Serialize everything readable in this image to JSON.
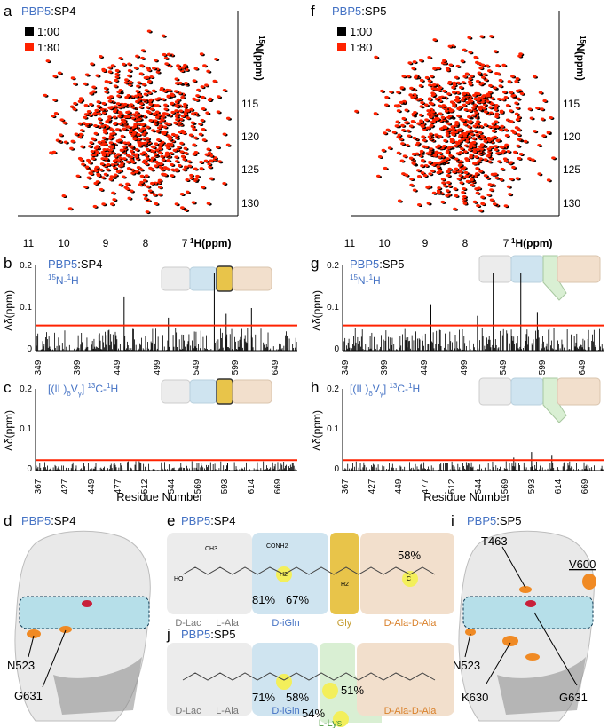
{
  "panels": {
    "a": {
      "letter": "a",
      "prot": "PBP5",
      "lig": ":SP4",
      "legend": [
        {
          "label": "1:00",
          "color": "#000000"
        },
        {
          "label": "1:80",
          "color": "#ff2200"
        }
      ],
      "y_axis_label_sup": "15",
      "y_axis_label": "N(ppm)",
      "x_axis_label_sup": "1",
      "x_axis_label": "H(ppm)",
      "x_ticks": [
        "11",
        "10",
        "9",
        "8",
        "7"
      ],
      "y_ticks": [
        "115",
        "120",
        "125",
        "130"
      ]
    },
    "f": {
      "letter": "f",
      "prot": "PBP5",
      "lig": ":SP5",
      "legend": [
        {
          "label": "1:00",
          "color": "#000000"
        },
        {
          "label": "1:80",
          "color": "#ff2200"
        }
      ],
      "y_axis_label_sup": "15",
      "y_axis_label": "N(ppm)",
      "x_axis_label_sup": "1",
      "x_axis_label": "H(ppm)",
      "x_ticks": [
        "11",
        "10",
        "9",
        "8",
        "7"
      ],
      "y_ticks": [
        "115",
        "120",
        "125",
        "130"
      ]
    },
    "b": {
      "letter": "b",
      "prot": "PBP5",
      "lig": ":SP4",
      "sub_a": "15",
      "sub_b": "N-",
      "sub_c": "1",
      "sub_d": "H",
      "y_label": "Δδ(ppm)",
      "y_ticks": [
        "0.2",
        "0.1",
        "0"
      ],
      "x_ticks": [
        "349",
        "399",
        "449",
        "499",
        "549",
        "599",
        "649"
      ]
    },
    "g": {
      "letter": "g",
      "prot": "PBP5",
      "lig": ":SP5",
      "sub_a": "15",
      "sub_b": "N-",
      "sub_c": "1",
      "sub_d": "H",
      "y_label": "Δδ(ppm)",
      "y_ticks": [
        "0.2",
        "0.1",
        "0"
      ],
      "x_ticks": [
        "349",
        "399",
        "449",
        "499",
        "549",
        "599",
        "649"
      ]
    },
    "c": {
      "letter": "c",
      "label_a": "[(IL)",
      "label_b": "δ",
      "label_c": "V",
      "label_d": "γ",
      "label_e": "] ",
      "label_f": "13",
      "label_g": "C-",
      "label_h": "1",
      "label_i": "H",
      "y_label": "Δδ(ppm)",
      "y_ticks": [
        "0.2",
        "0.1",
        "0"
      ],
      "x_ticks": [
        "367",
        "427",
        "449",
        "477",
        "512",
        "544",
        "569",
        "593",
        "614",
        "669"
      ],
      "x_title": "Residue Number"
    },
    "h": {
      "letter": "h",
      "label_a": "[(IL)",
      "label_b": "δ",
      "label_c": "V",
      "label_d": "γ",
      "label_e": "] ",
      "label_f": "13",
      "label_g": "C-",
      "label_h": "1",
      "label_i": "H",
      "y_label": "Δδ(ppm)",
      "y_ticks": [
        "0.2",
        "0.1",
        "0"
      ],
      "x_ticks": [
        "367",
        "427",
        "449",
        "477",
        "512",
        "544",
        "569",
        "593",
        "614",
        "669"
      ],
      "x_title": "Residue Number"
    },
    "d": {
      "letter": "d",
      "prot": "PBP5",
      "lig": ":SP4",
      "residues": [
        "N523",
        "G631"
      ]
    },
    "i": {
      "letter": "i",
      "prot": "PBP5",
      "lig": ":SP5",
      "residues": [
        "T463",
        "V600",
        "N523",
        "K630",
        "G631"
      ]
    },
    "e": {
      "letter": "e",
      "prot": "PBP5",
      "lig": ":SP4",
      "segments": [
        "D-Lac",
        "L-Ala",
        "D-iGln",
        "Gly",
        "D-Ala-D-Ala"
      ],
      "percents": [
        "81%",
        "67%",
        "58%"
      ],
      "atoms": [
        "CH3",
        "HO",
        "O",
        "H",
        "N",
        "CONH2",
        "H2",
        "C",
        "NH2"
      ]
    },
    "j": {
      "letter": "j",
      "prot": "PBP5",
      "lig": ":SP5",
      "segments": [
        "D-Lac",
        "L-Ala",
        "D-iGln",
        "L-Lys",
        "D-Ala-D-Ala"
      ],
      "percents": [
        "71%",
        "58%",
        "51%",
        "54%"
      ]
    }
  },
  "chart_data": [
    {
      "type": "bar",
      "title": "PBP5:SP4 15N-1H",
      "xlabel": "",
      "ylabel": "Δδ(ppm)",
      "ylim": [
        0,
        0.22
      ],
      "xlim": [
        349,
        680
      ],
      "threshold": 0.065,
      "peaks": [
        {
          "x": 461,
          "y": 0.14
        },
        {
          "x": 575,
          "y": 0.2
        },
        {
          "x": 590,
          "y": 0.095
        },
        {
          "x": 622,
          "y": 0.11
        },
        {
          "x": 517,
          "y": 0.085
        }
      ]
    },
    {
      "type": "bar",
      "title": "PBP5:SP5 15N-1H",
      "xlabel": "",
      "ylabel": "Δδ(ppm)",
      "ylim": [
        0,
        0.22
      ],
      "xlim": [
        349,
        680
      ],
      "threshold": 0.065,
      "peaks": [
        {
          "x": 461,
          "y": 0.12
        },
        {
          "x": 540,
          "y": 0.2
        },
        {
          "x": 575,
          "y": 0.2
        },
        {
          "x": 596,
          "y": 0.1
        },
        {
          "x": 520,
          "y": 0.09
        }
      ]
    },
    {
      "type": "bar",
      "title": "PBP5:SP4 [(IL)δVγ] 13C-1H",
      "xlabel": "Residue Number",
      "ylabel": "Δδ(ppm)",
      "ylim": [
        0,
        0.22
      ],
      "xlim": [
        367,
        675
      ],
      "threshold": 0.028,
      "peaks": [
        {
          "x": 544,
          "y": 0.02
        },
        {
          "x": 593,
          "y": 0.02
        }
      ]
    },
    {
      "type": "bar",
      "title": "PBP5:SP5 [(IL)δVγ] 13C-1H",
      "xlabel": "Residue Number",
      "ylabel": "Δδ(ppm)",
      "ylim": [
        0,
        0.22
      ],
      "xlim": [
        367,
        675
      ],
      "threshold": 0.028,
      "peaks": [
        {
          "x": 590,
          "y": 0.05
        },
        {
          "x": 569,
          "y": 0.035
        },
        {
          "x": 614,
          "y": 0.04
        },
        {
          "x": 620,
          "y": 0.03
        }
      ]
    }
  ],
  "colors": {
    "blue": "#4472c4",
    "red": "#ff2200",
    "gly": "#e8c44a",
    "lys": "#d9efd3",
    "blueBox": "#cfe4f0",
    "tanBox": "#f2dfcc",
    "greyBox": "#ececec",
    "orange": "#f08a24"
  }
}
